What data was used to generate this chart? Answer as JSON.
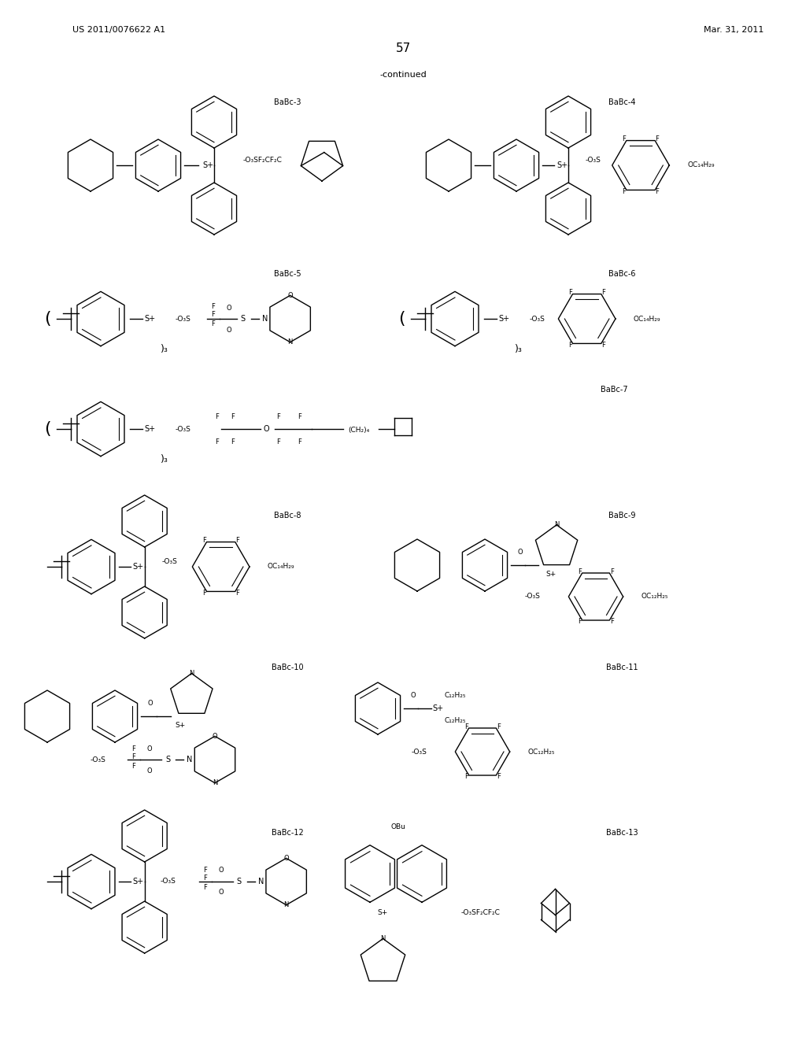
{
  "page_header_left": "US 2011/0076622 A1",
  "page_header_right": "Mar. 31, 2011",
  "page_number": "57",
  "continued_label": "-continued",
  "background_color": "#ffffff",
  "text_color": "#000000"
}
